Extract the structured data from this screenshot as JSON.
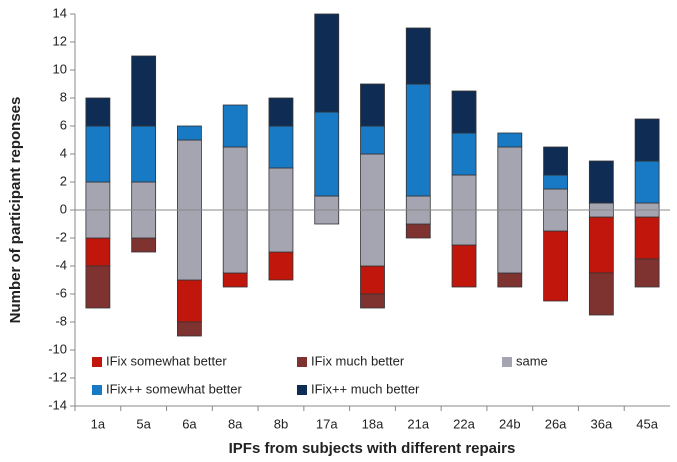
{
  "chart_data": {
    "type": "diverging-bar",
    "x_label": "IPFs from subjects with different repairs",
    "y_label": "Number of participant reponses",
    "categories": [
      "1a",
      "5a",
      "6a",
      "8a",
      "8b",
      "17a",
      "18a",
      "21a",
      "22a",
      "24b",
      "26a",
      "36a",
      "45a"
    ],
    "series": [
      {
        "name": "IFix somewhat better",
        "color": "#c0160c",
        "side": "below",
        "values": [
          2,
          0,
          3,
          1,
          2,
          0,
          2,
          0,
          3,
          0,
          5,
          4,
          3
        ]
      },
      {
        "name": "IFix much better",
        "color": "#7f3331",
        "side": "below",
        "values": [
          3,
          1,
          1,
          0,
          0,
          0,
          1,
          1,
          0,
          1,
          0,
          3,
          2
        ]
      },
      {
        "name": "same",
        "color": "#a5a5b2",
        "side": "center",
        "values": [
          4,
          4,
          10,
          9,
          6,
          2,
          8,
          2,
          5,
          9,
          3,
          1,
          1
        ]
      },
      {
        "name": "IFix++ somewhat better",
        "color": "#1879c4",
        "side": "above",
        "values": [
          4,
          4,
          1,
          3,
          3,
          6,
          2,
          8,
          3,
          1,
          1,
          0,
          3
        ]
      },
      {
        "name": "IFix++ much better",
        "color": "#0f2c55",
        "side": "above",
        "values": [
          2,
          5,
          0,
          0,
          2,
          7,
          3,
          4,
          3,
          0,
          2,
          3,
          3
        ]
      }
    ],
    "ylim": [
      -14,
      14
    ],
    "yticks": [
      -14,
      -12,
      -10,
      -8,
      -6,
      -4,
      -2,
      0,
      2,
      4,
      6,
      8,
      10,
      12,
      14
    ],
    "grid": false
  }
}
